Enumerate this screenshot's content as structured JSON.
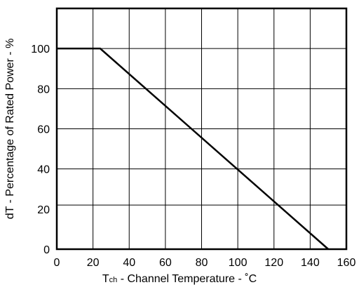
{
  "chart_data": {
    "type": "line",
    "title": "",
    "xlabel": {
      "symbol": "T",
      "subscript": "ch",
      "text": " - Channel Temperature - ˚C"
    },
    "ylabel": "dT - Percentage of Rated Power - %",
    "xlim": [
      0,
      160
    ],
    "ylim": [
      0,
      120
    ],
    "x_ticks": [
      0,
      20,
      40,
      60,
      80,
      100,
      120,
      140,
      160
    ],
    "y_ticks": [
      0,
      20,
      40,
      60,
      80,
      100
    ],
    "x_gridlines": [
      20,
      40,
      60,
      80,
      100,
      120,
      140
    ],
    "y_gridlines": [
      22,
      40,
      60,
      80,
      100
    ],
    "grid": true,
    "legend": "none",
    "series": [
      {
        "color": "#000000",
        "points": [
          {
            "x": 0,
            "y": 100
          },
          {
            "x": 24,
            "y": 100
          },
          {
            "x": 150,
            "y": 0
          }
        ]
      }
    ]
  }
}
